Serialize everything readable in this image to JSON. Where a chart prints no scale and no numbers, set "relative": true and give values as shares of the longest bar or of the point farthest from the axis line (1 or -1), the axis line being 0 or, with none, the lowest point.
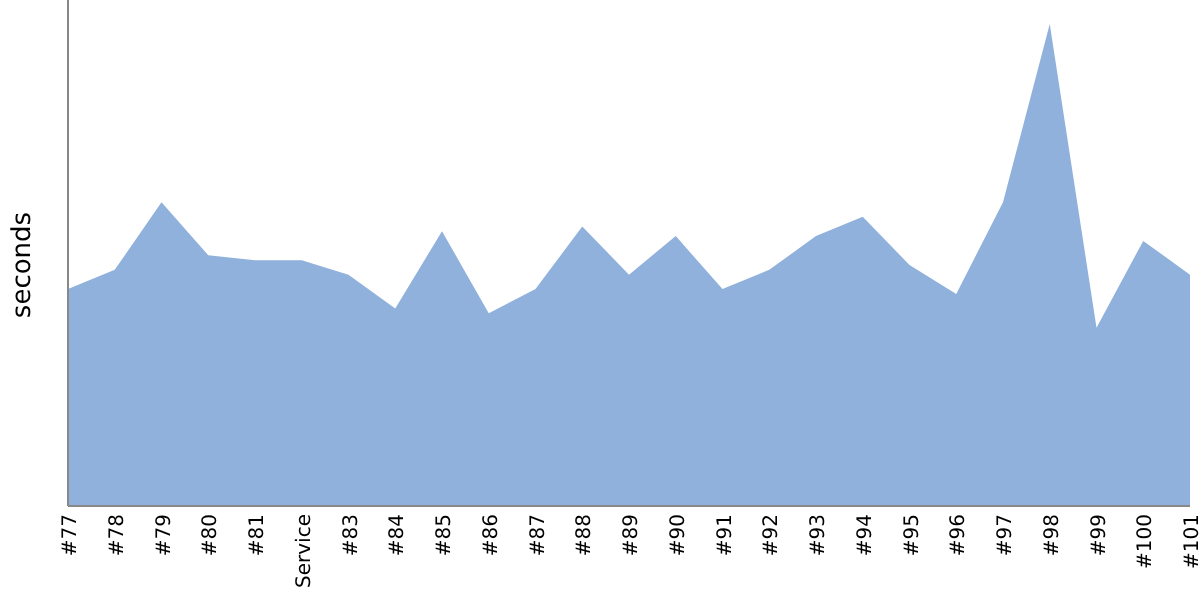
{
  "chart_data": {
    "type": "area",
    "ylabel": "seconds",
    "relative": true,
    "color": "#8fb1db",
    "categories": [
      "#77",
      "#78",
      "#79",
      "#80",
      "#81",
      "Service",
      "#83",
      "#84",
      "#85",
      "#86",
      "#87",
      "#88",
      "#89",
      "#90",
      "#91",
      "#92",
      "#93",
      "#94",
      "#95",
      "#96",
      "#97",
      "#98",
      "#99",
      "#100",
      "#101"
    ],
    "values": [
      0.45,
      0.49,
      0.63,
      0.52,
      0.51,
      0.51,
      0.48,
      0.41,
      0.57,
      0.4,
      0.45,
      0.58,
      0.48,
      0.56,
      0.45,
      0.49,
      0.56,
      0.6,
      0.5,
      0.44,
      0.63,
      1,
      0.37,
      0.55,
      0.48
    ]
  }
}
